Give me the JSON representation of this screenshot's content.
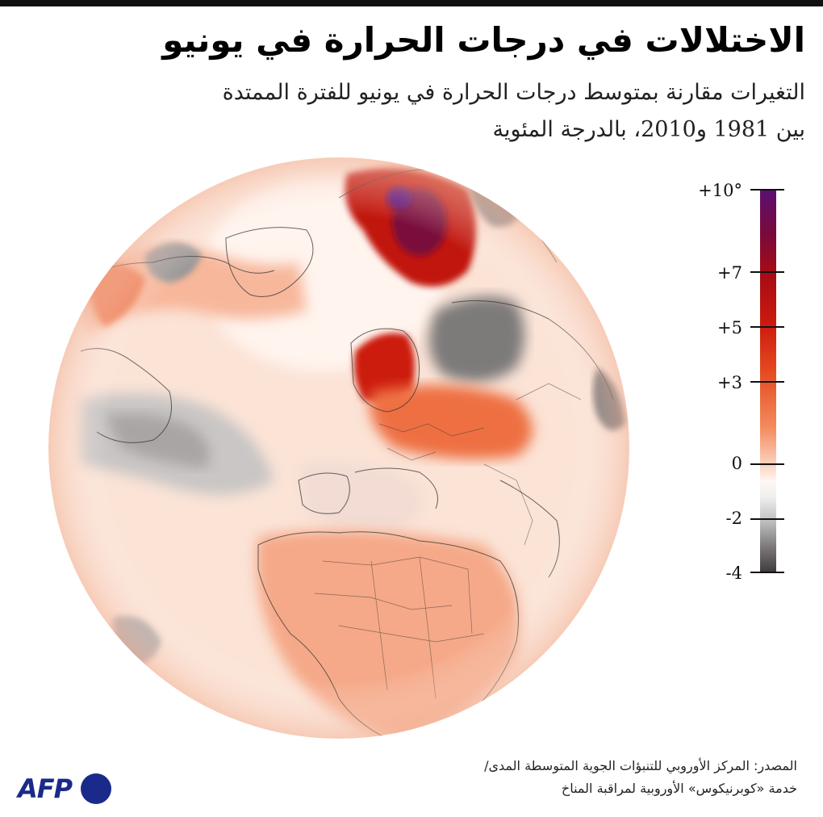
{
  "title": "الاختلالات في درجات الحرارة في يونيو",
  "subtitle_line1": "التغيرات مقارنة بمتوسط درجات الحرارة في يونيو للفترة الممتدة",
  "subtitle_line2": "بين 1981 و2010، بالدرجة المئوية",
  "legend": {
    "labels": [
      "+10°",
      "+7",
      "+5",
      "+3",
      "0",
      "-2",
      "-4"
    ],
    "values": [
      10,
      7,
      5,
      3,
      0,
      -2,
      -4
    ],
    "range": [
      -4,
      10
    ],
    "colors": {
      "max": "#5b0f73",
      "hot": "#cc1a0d",
      "warm": "#f38a5c",
      "neutral": "#fff7f2",
      "cool": "#c5c3c3",
      "min": "#3d3939"
    }
  },
  "source_line1": "المصدر: المركز الأوروبي للتنبؤات الجوية المتوسطة المدى/",
  "source_line2": "خدمة «كوبرنيكوس» الأوروبية لمراقبة المناخ",
  "logo": {
    "text": "AFP",
    "color": "#1a2a8a"
  },
  "map": {
    "projection": "orthographic globe centered on Europe / Arctic",
    "base_color": "#fbe6dc"
  }
}
